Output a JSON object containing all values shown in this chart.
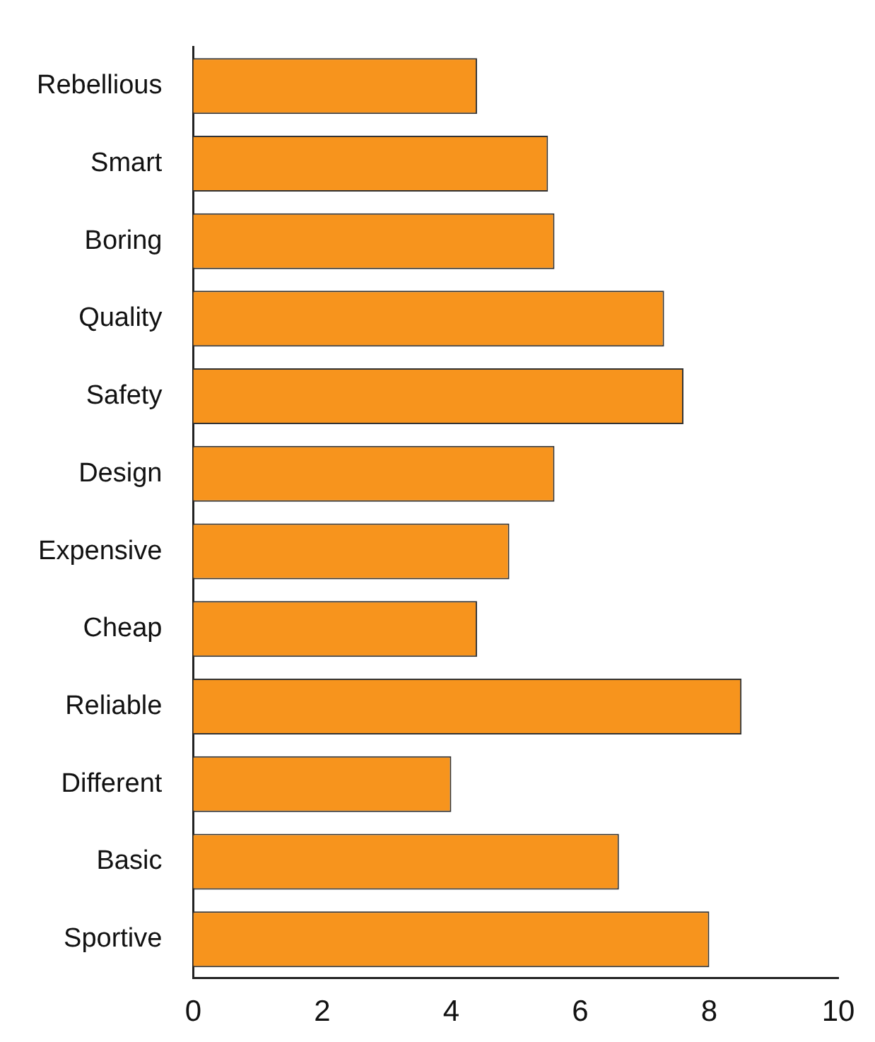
{
  "chart_data": {
    "type": "bar",
    "orientation": "horizontal",
    "categories": [
      "Rebellious",
      "Smart",
      "Boring",
      "Quality",
      "Safety",
      "Design",
      "Expensive",
      "Cheap",
      "Reliable",
      "Different",
      "Basic",
      "Sportive"
    ],
    "values": [
      4.4,
      5.5,
      5.6,
      7.3,
      7.6,
      5.6,
      4.9,
      4.4,
      8.5,
      4.0,
      6.6,
      8.0
    ],
    "color": "#f7941d",
    "xlim": [
      0,
      10
    ],
    "xticks": [
      0,
      2,
      4,
      6,
      8,
      10
    ],
    "grid": false,
    "legend": false
  }
}
